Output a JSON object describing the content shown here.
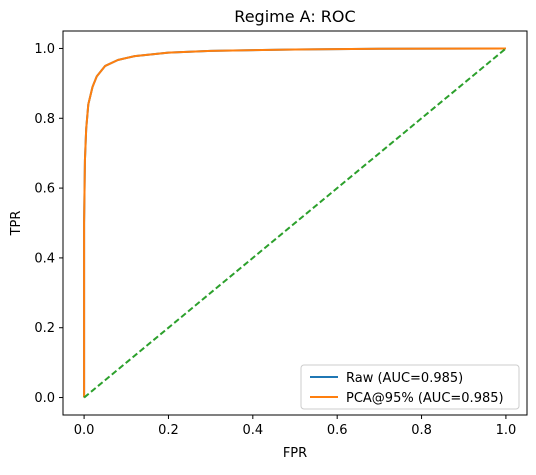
{
  "chart_data": {
    "type": "line",
    "title": "Regime A: ROC",
    "xlabel": "FPR",
    "ylabel": "TPR",
    "xlim": [
      -0.05,
      1.05
    ],
    "ylim": [
      -0.05,
      1.05
    ],
    "xticks": [
      "0.0",
      "0.2",
      "0.4",
      "0.6",
      "0.8",
      "1.0"
    ],
    "yticks": [
      "0.0",
      "0.2",
      "0.4",
      "0.6",
      "0.8",
      "1.0"
    ],
    "grid": false,
    "legend_position": "lower-right",
    "series": [
      {
        "name": "Raw (AUC=0.985)",
        "color": "#1f77b4",
        "style": "solid",
        "x": [
          0,
          0,
          0.002,
          0.005,
          0.01,
          0.02,
          0.03,
          0.05,
          0.08,
          0.12,
          0.2,
          0.3,
          0.5,
          0.7,
          1.0
        ],
        "y": [
          0,
          0.5,
          0.68,
          0.77,
          0.84,
          0.89,
          0.92,
          0.95,
          0.967,
          0.978,
          0.988,
          0.993,
          0.997,
          0.999,
          1.0
        ]
      },
      {
        "name": "PCA@95% (AUC=0.985)",
        "color": "#ff7f0e",
        "style": "solid",
        "x": [
          0,
          0,
          0.002,
          0.005,
          0.01,
          0.02,
          0.03,
          0.05,
          0.08,
          0.12,
          0.2,
          0.3,
          0.5,
          0.7,
          1.0
        ],
        "y": [
          0,
          0.5,
          0.68,
          0.77,
          0.84,
          0.89,
          0.92,
          0.95,
          0.967,
          0.978,
          0.988,
          0.993,
          0.997,
          0.999,
          1.0
        ]
      },
      {
        "color": "#2ca02c",
        "style": "dashed",
        "x": [
          0,
          1
        ],
        "y": [
          0,
          1
        ]
      }
    ]
  }
}
